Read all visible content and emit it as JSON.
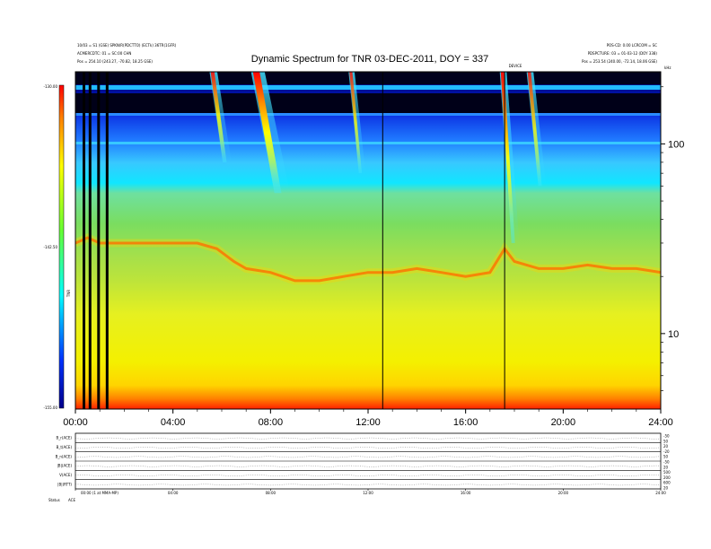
{
  "chart_data": {
    "type": "heatmap",
    "title": "Dynamic Spectrum for TNR 03-DEC-2011, DOY = 337",
    "header_left": [
      "10/03 = S1 (GSE) SPKN/R(PDCTTO) (ECTk) 36TR(1GFR)",
      "ACMERCDTC: 01 = SC:00 CHN",
      "Pos = 254.10 (243.27, -70.82, 18.25 GSE)"
    ],
    "header_right": [
      "POS-CD: 0.00    LCRCOM = SC",
      "PDSPCTURE: 03 = 01-03-12 (DOY 338)",
      "Pos = 253.54 (240.00, -72.14, 18.06 GSE)"
    ],
    "header_right_unit": "kHz",
    "marker_label": "DEVICE",
    "x_ticks": [
      "00:00",
      "04:00",
      "08:00",
      "12:00",
      "16:00",
      "20:00",
      "24:00"
    ],
    "x_range_hours": [
      0,
      24
    ],
    "y_axis": {
      "scale": "log",
      "range_khz": [
        4,
        240
      ],
      "ticks": [
        "100",
        "10"
      ],
      "tick_values": [
        100,
        10
      ]
    },
    "colorbar": {
      "ticks": [
        "-130.00",
        "-142.50",
        "-155.00"
      ],
      "range": [
        -155,
        -130
      ],
      "label": "TNR",
      "colormap": "blue-cyan-green-yellow-red"
    },
    "vertical_lines_hours": [
      0.35,
      0.6,
      0.95,
      1.3,
      12.6,
      17.6
    ],
    "bursts": [
      {
        "start_hour": 5.5,
        "end_hour": 6.4,
        "low_khz": 80,
        "intensity": 0.85
      },
      {
        "start_hour": 7.2,
        "end_hour": 8.8,
        "low_khz": 55,
        "intensity": 1.0
      },
      {
        "start_hour": 11.2,
        "end_hour": 11.9,
        "low_khz": 70,
        "intensity": 0.8
      },
      {
        "start_hour": 17.4,
        "end_hour": 18.2,
        "low_khz": 30,
        "intensity": 0.95
      },
      {
        "start_hour": 18.5,
        "end_hour": 19.3,
        "low_khz": 60,
        "intensity": 0.8
      }
    ],
    "plasma_line": {
      "x_hours": [
        0,
        0.5,
        1,
        2,
        3,
        4,
        5,
        5.8,
        6.5,
        7,
        8,
        9,
        10,
        11,
        12,
        13,
        14,
        15,
        16,
        17,
        17.6,
        18,
        19,
        20,
        21,
        22,
        23,
        24
      ],
      "freq_khz": [
        30,
        32,
        30,
        30,
        30,
        30,
        30,
        28,
        24,
        22,
        21,
        19,
        19,
        20,
        21,
        21,
        22,
        21,
        20,
        21,
        28,
        24,
        22,
        22,
        23,
        22,
        22,
        21
      ]
    },
    "panel_labels": [
      "B_r(ACE)",
      "B_t(ACE)",
      "B_n(ACE)",
      "|B|(ACE)",
      "V(ACE)",
      "|B|(RTT)"
    ],
    "panel_right_ticks": [
      "-50",
      "50",
      "20",
      "-20",
      "50",
      "-50",
      "20",
      "500",
      "200",
      "600",
      "20"
    ],
    "panel_x_ticks": [
      "00:00",
      "04:00",
      "08:00",
      "12:00",
      "16:00",
      "20:00",
      "24:00"
    ],
    "panel_left_note": "00:00 (1 at MMA-MP)",
    "footer_label": "Status",
    "footer_value": "ACE"
  }
}
